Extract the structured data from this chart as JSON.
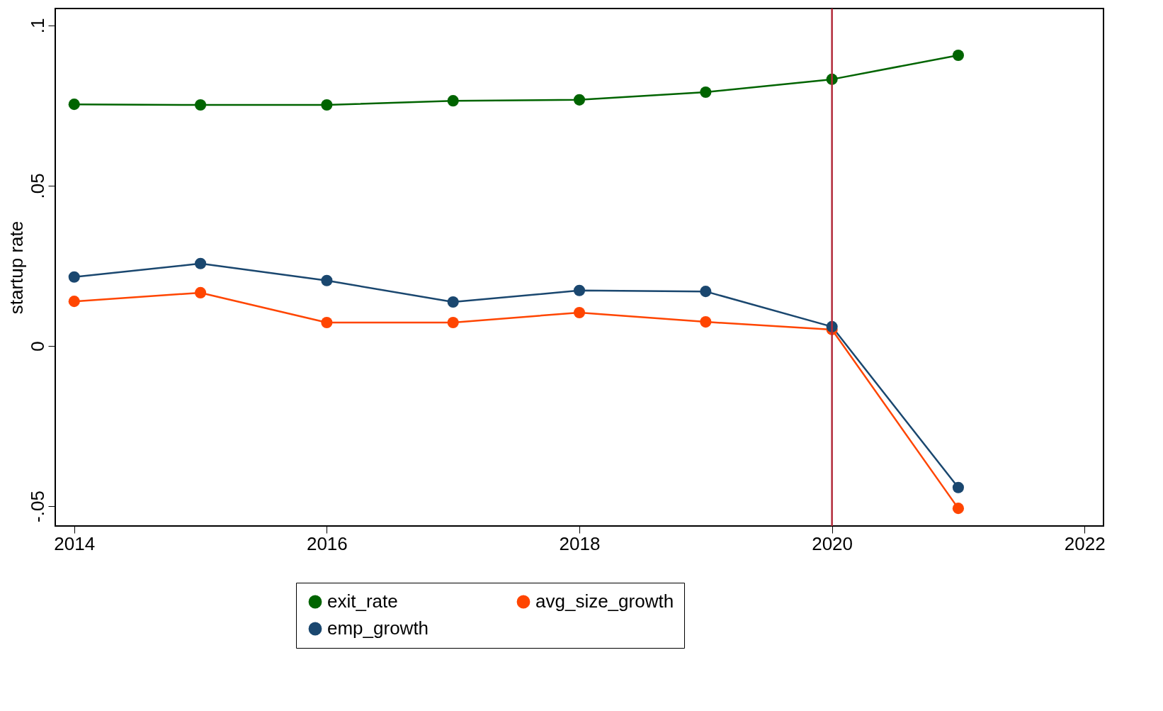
{
  "chart_data": {
    "type": "line",
    "ylabel": "startup rate",
    "x": [
      2014,
      2015,
      2016,
      2017,
      2018,
      2019,
      2020,
      2021
    ],
    "series": [
      {
        "name": "exit_rate",
        "color": "#006400",
        "values": [
          0.0754,
          0.0752,
          0.0752,
          0.0765,
          0.0768,
          0.0792,
          0.0832,
          0.0907
        ]
      },
      {
        "name": "avg_size_growth",
        "color": "#ff4500",
        "values": [
          0.0139,
          0.0166,
          0.0073,
          0.0073,
          0.0104,
          0.0075,
          0.0051,
          -0.0507
        ]
      },
      {
        "name": "emp_growth",
        "color": "#1a476f",
        "values": [
          0.0215,
          0.0257,
          0.0204,
          0.0137,
          0.0173,
          0.017,
          0.006,
          -0.0442
        ]
      }
    ],
    "xlim": [
      2013.85,
      2022.15
    ],
    "xticks": [
      2014,
      2016,
      2018,
      2020,
      2022
    ],
    "ylim": [
      -0.0562,
      0.1053
    ],
    "yticks": [
      {
        "value": -0.05,
        "label": "-.05"
      },
      {
        "value": 0,
        "label": "0"
      },
      {
        "value": 0.05,
        "label": ".05"
      },
      {
        "value": 0.1,
        "label": ".1"
      }
    ],
    "ref_lines": [
      {
        "axis": "x",
        "value": 2020,
        "color": "#b22a3a"
      }
    ],
    "marker": "circle",
    "line_style": "solid",
    "grid": false,
    "legend": "bottom"
  }
}
